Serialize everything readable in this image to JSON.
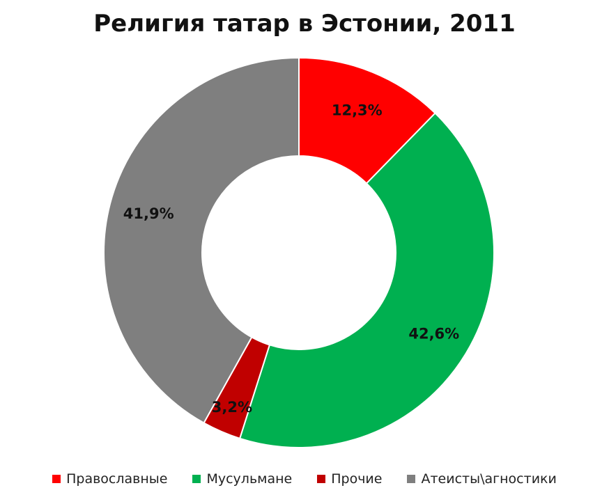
{
  "chart_data": {
    "type": "pie",
    "subtype": "donut",
    "title": "Религия татар в Эстонии, 2011",
    "categories": [
      "Православные",
      "Мусульмане",
      "Прочие",
      "Атеисты\\агностики"
    ],
    "values": [
      12.3,
      42.6,
      3.2,
      41.9
    ],
    "labels": [
      "12,3%",
      "42,6%",
      "3,2%",
      "41,9%"
    ],
    "colors": [
      "#ff0000",
      "#00b050",
      "#c00000",
      "#7f7f7f"
    ],
    "legend_position": "bottom"
  }
}
